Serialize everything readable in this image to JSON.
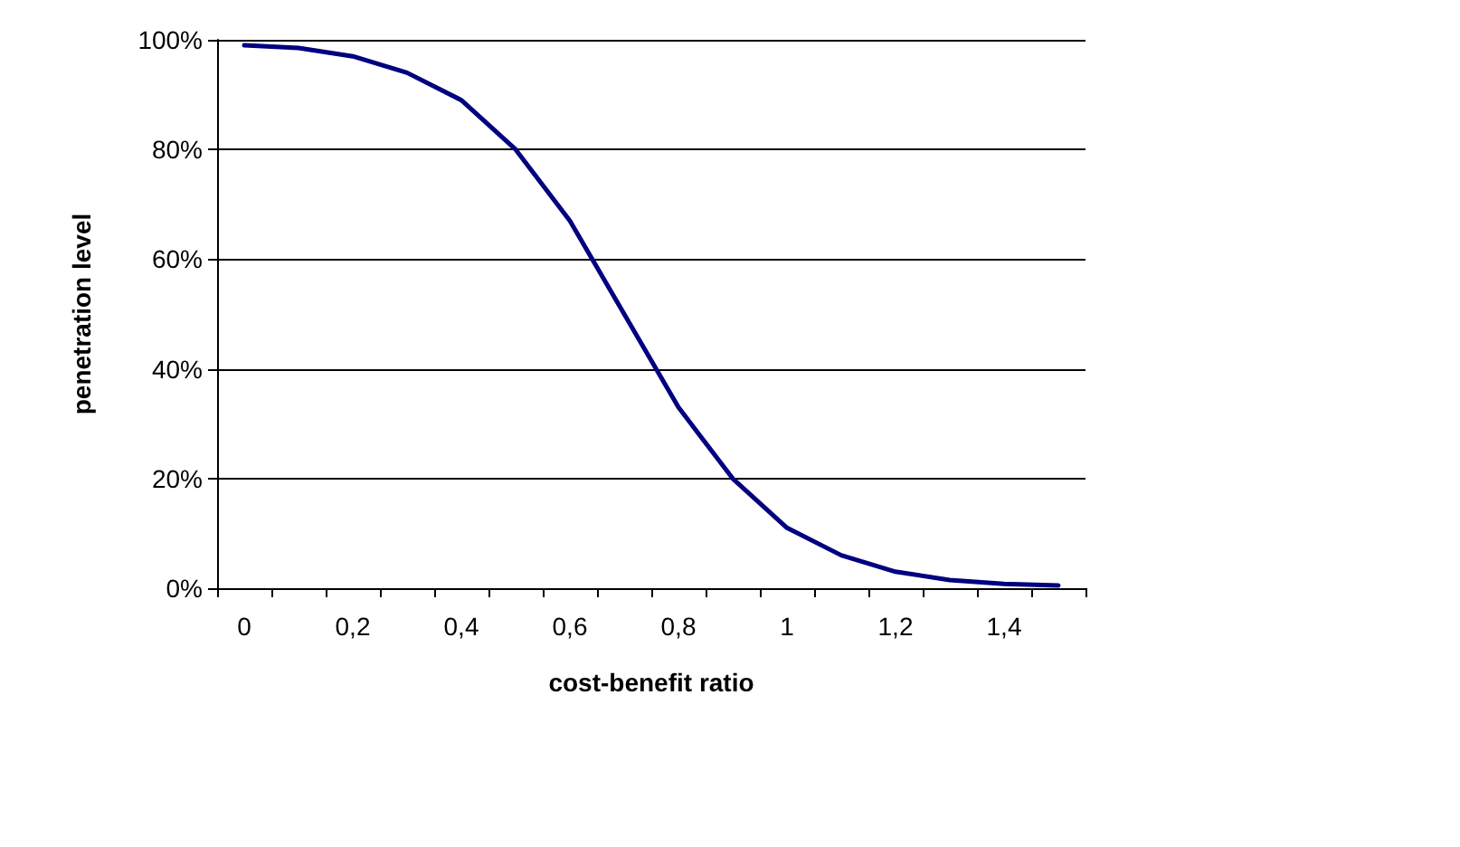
{
  "chart_data": {
    "type": "line",
    "xlabel": "cost-benefit ratio",
    "ylabel": "penetration level",
    "categories": [
      "0",
      null,
      "0,2",
      null,
      "0,4",
      null,
      "0,6",
      null,
      "0,8",
      null,
      "1",
      null,
      "1,2",
      null,
      "1,4",
      null
    ],
    "series": [
      {
        "color": "#000080",
        "values": [
          99,
          98.5,
          97,
          94,
          89,
          80,
          67,
          50,
          33,
          20,
          11,
          6,
          3,
          1.5,
          0.8,
          0.5
        ]
      }
    ],
    "ylim": [
      0,
      100
    ],
    "yticks": [
      {
        "value": 0,
        "label": "0%"
      },
      {
        "value": 20,
        "label": "20%"
      },
      {
        "value": 40,
        "label": "40%"
      },
      {
        "value": 60,
        "label": "60%"
      },
      {
        "value": 80,
        "label": "80%"
      },
      {
        "value": 100,
        "label": "100%"
      }
    ],
    "grid": "y",
    "marker": "none",
    "line_style": "solid"
  }
}
